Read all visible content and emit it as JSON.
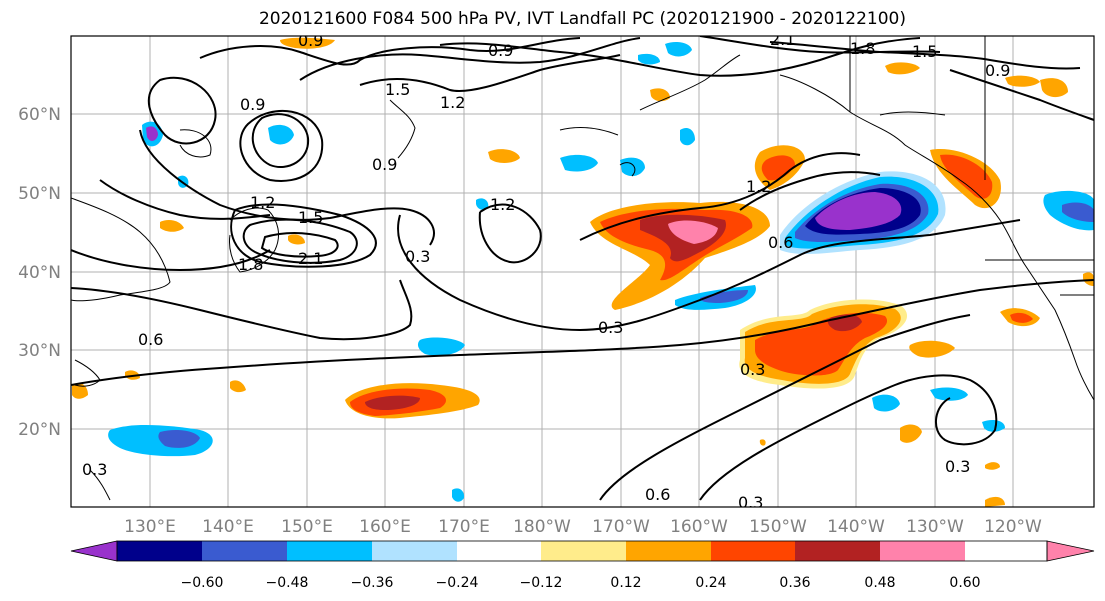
{
  "title": "2020121600 F084 500 hPa PV, IVT Landfall PC (2020121900 - 2020122100)",
  "map": {
    "lat_labels": [
      "60°N",
      "50°N",
      "40°N",
      "30°N",
      "20°N"
    ],
    "lon_labels": [
      "130°E",
      "140°E",
      "150°E",
      "160°E",
      "170°E",
      "180°W",
      "170°W",
      "160°W",
      "150°W",
      "140°W",
      "130°W",
      "120°W"
    ],
    "contour_labels": [
      "0.9",
      "2.1",
      "1.8",
      "1.5",
      "0.9",
      "1.5",
      "1.2",
      "0.9",
      "0.9",
      "1.2",
      "1.2",
      "1.5",
      "2.1",
      "1.8",
      "0.3",
      "1.2",
      "0.6",
      "0.3",
      "0.3",
      "0.3",
      "0.3",
      "0.6",
      "0.3",
      "0.6",
      "0.9"
    ]
  },
  "colorbar": {
    "ticks": [
      "−0.60",
      "−0.48",
      "−0.36",
      "−0.24",
      "−0.12",
      "0.12",
      "0.24",
      "0.36",
      "0.48",
      "0.60"
    ],
    "colors": [
      "#9932cc",
      "#00008b",
      "#3a5bd0",
      "#00bfff",
      "#b0e2ff",
      "#ffffff",
      "#ffec8b",
      "#ffa500",
      "#ff4500",
      "#b22222",
      "#ff82ab"
    ]
  }
}
